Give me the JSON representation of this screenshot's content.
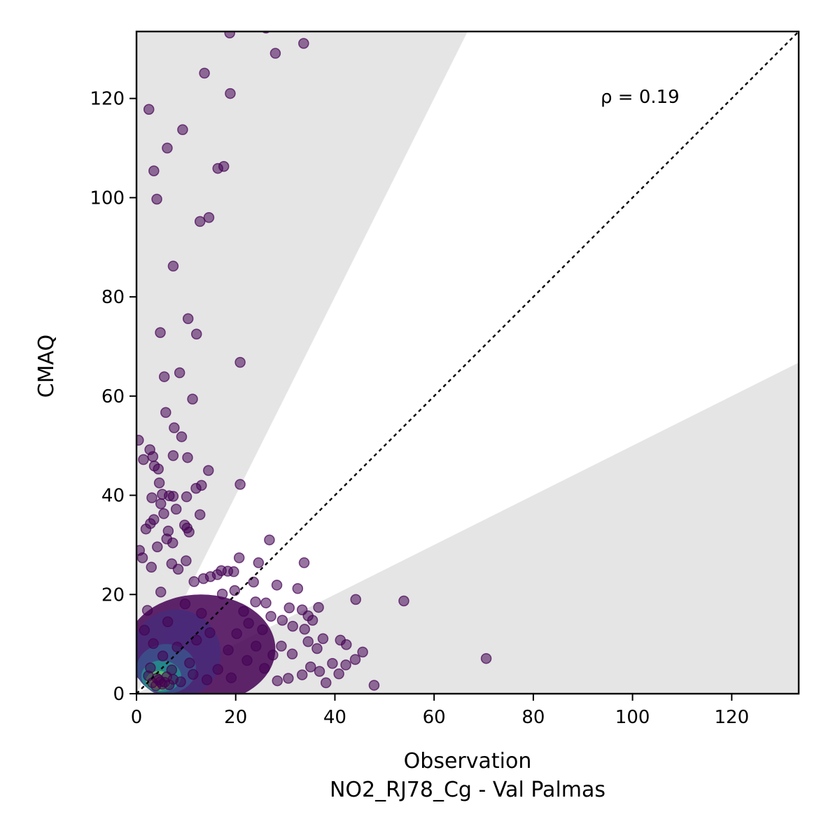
{
  "chart_data": {
    "type": "scatter",
    "title": "",
    "xlabel": "Observation",
    "xlabel_sub": "NO2_RJ78_Cg - Val Palmas",
    "ylabel": "CMAQ",
    "xlim": [
      0,
      133.5
    ],
    "ylim": [
      0,
      133.5
    ],
    "xticks": [
      0,
      20,
      40,
      60,
      80,
      100,
      120
    ],
    "yticks": [
      0,
      20,
      40,
      60,
      80,
      100,
      120
    ],
    "grid": false,
    "annotation": "ρ = 0.19",
    "reference_line": "1:1",
    "shaded_band_factor": 2,
    "colormap": "viridis",
    "colors": {
      "points_low_density": "#440154",
      "points_high_density": "#fde725",
      "band_fill": "#e5e5e5",
      "reference_line": "#000000"
    },
    "points": [
      [
        18.8,
        133.2
      ],
      [
        26.1,
        134.2
      ],
      [
        33.7,
        131.1
      ],
      [
        28.0,
        129.1
      ],
      [
        13.7,
        125.1
      ],
      [
        18.9,
        121.0
      ],
      [
        2.5,
        117.8
      ],
      [
        9.3,
        113.7
      ],
      [
        6.2,
        110.0
      ],
      [
        3.5,
        105.4
      ],
      [
        17.6,
        106.3
      ],
      [
        16.4,
        105.9
      ],
      [
        4.1,
        99.7
      ],
      [
        14.6,
        96.0
      ],
      [
        12.8,
        95.2
      ],
      [
        7.4,
        86.2
      ],
      [
        10.4,
        75.6
      ],
      [
        12.1,
        72.5
      ],
      [
        4.8,
        72.8
      ],
      [
        20.9,
        66.8
      ],
      [
        8.7,
        64.7
      ],
      [
        5.6,
        63.9
      ],
      [
        11.3,
        59.4
      ],
      [
        5.9,
        56.7
      ],
      [
        7.6,
        53.6
      ],
      [
        9.1,
        51.8
      ],
      [
        0.4,
        51.1
      ],
      [
        2.7,
        49.2
      ],
      [
        3.3,
        47.8
      ],
      [
        7.4,
        48.0
      ],
      [
        10.3,
        47.6
      ],
      [
        1.4,
        47.2
      ],
      [
        3.6,
        45.9
      ],
      [
        4.4,
        45.3
      ],
      [
        14.5,
        45.0
      ],
      [
        4.6,
        42.5
      ],
      [
        20.9,
        42.2
      ],
      [
        13.1,
        42.0
      ],
      [
        12.0,
        41.4
      ],
      [
        5.2,
        40.2
      ],
      [
        6.6,
        39.9
      ],
      [
        7.4,
        39.8
      ],
      [
        10.1,
        39.7
      ],
      [
        3.1,
        39.5
      ],
      [
        4.9,
        38.3
      ],
      [
        8.0,
        37.2
      ],
      [
        5.5,
        36.3
      ],
      [
        12.8,
        36.1
      ],
      [
        3.5,
        35.1
      ],
      [
        2.8,
        34.3
      ],
      [
        9.7,
        34.0
      ],
      [
        10.2,
        33.4
      ],
      [
        1.9,
        33.2
      ],
      [
        6.4,
        32.8
      ],
      [
        10.6,
        32.6
      ],
      [
        26.8,
        31.0
      ],
      [
        6.1,
        31.2
      ],
      [
        7.3,
        30.4
      ],
      [
        4.2,
        29.6
      ],
      [
        0.6,
        28.9
      ],
      [
        1.2,
        27.4
      ],
      [
        20.7,
        27.4
      ],
      [
        10.0,
        26.8
      ],
      [
        33.8,
        26.4
      ],
      [
        24.6,
        26.4
      ],
      [
        7.1,
        26.2
      ],
      [
        3.0,
        25.5
      ],
      [
        8.4,
        25.1
      ],
      [
        17.1,
        24.8
      ],
      [
        18.4,
        24.7
      ],
      [
        19.6,
        24.6
      ],
      [
        16.3,
        24.0
      ],
      [
        14.9,
        23.6
      ],
      [
        13.5,
        23.2
      ],
      [
        11.6,
        22.6
      ],
      [
        23.6,
        22.5
      ],
      [
        28.3,
        21.9
      ],
      [
        32.5,
        21.2
      ],
      [
        19.8,
        20.8
      ],
      [
        17.3,
        20.1
      ],
      [
        44.2,
        19.0
      ],
      [
        53.9,
        18.7
      ],
      [
        24.0,
        18.5
      ],
      [
        26.1,
        18.3
      ],
      [
        36.7,
        17.4
      ],
      [
        30.8,
        17.3
      ],
      [
        33.4,
        16.9
      ],
      [
        21.6,
        16.6
      ],
      [
        34.6,
        15.7
      ],
      [
        27.1,
        15.6
      ],
      [
        29.4,
        14.8
      ],
      [
        35.5,
        14.8
      ],
      [
        22.6,
        14.2
      ],
      [
        31.5,
        13.6
      ],
      [
        33.9,
        13.0
      ],
      [
        25.4,
        12.9
      ],
      [
        37.6,
        11.1
      ],
      [
        41.1,
        10.8
      ],
      [
        34.6,
        10.5
      ],
      [
        42.3,
        9.9
      ],
      [
        29.2,
        9.6
      ],
      [
        36.4,
        9.1
      ],
      [
        45.6,
        8.4
      ],
      [
        31.4,
        8.0
      ],
      [
        70.5,
        7.1
      ],
      [
        44.1,
        6.9
      ],
      [
        39.5,
        6.1
      ],
      [
        42.2,
        5.8
      ],
      [
        35.1,
        5.4
      ],
      [
        36.9,
        4.5
      ],
      [
        40.8,
        4.0
      ],
      [
        33.4,
        3.8
      ],
      [
        30.6,
        3.1
      ],
      [
        47.9,
        1.7
      ],
      [
        38.2,
        2.2
      ],
      [
        28.4,
        2.6
      ],
      [
        12.1,
        10.8
      ],
      [
        14.8,
        12.3
      ],
      [
        8.2,
        9.4
      ],
      [
        18.5,
        8.8
      ],
      [
        22.3,
        6.7
      ],
      [
        16.4,
        4.9
      ],
      [
        25.8,
        5.1
      ],
      [
        10.7,
        6.2
      ],
      [
        6.3,
        14.5
      ],
      [
        9.8,
        18.1
      ],
      [
        4.9,
        20.5
      ],
      [
        2.2,
        16.8
      ],
      [
        13.1,
        16.2
      ],
      [
        20.2,
        12.1
      ],
      [
        24.1,
        9.6
      ],
      [
        27.5,
        7.8
      ],
      [
        19.1,
        3.2
      ],
      [
        14.2,
        2.8
      ],
      [
        11.4,
        3.9
      ],
      [
        8.9,
        2.4
      ],
      [
        7.1,
        4.8
      ],
      [
        5.3,
        7.6
      ],
      [
        3.4,
        10.1
      ],
      [
        1.6,
        12.8
      ],
      [
        2.8,
        5.2
      ],
      [
        4.1,
        3.1
      ],
      [
        5.7,
        2.3
      ],
      [
        6.6,
        1.8
      ],
      [
        3.9,
        1.6
      ],
      [
        4.8,
        2.4
      ],
      [
        5.2,
        1.9
      ],
      [
        4.5,
        2.8
      ],
      [
        3.2,
        2.2
      ],
      [
        2.4,
        3.6
      ],
      [
        6.1,
        3.4
      ],
      [
        7.4,
        2.9
      ]
    ]
  }
}
